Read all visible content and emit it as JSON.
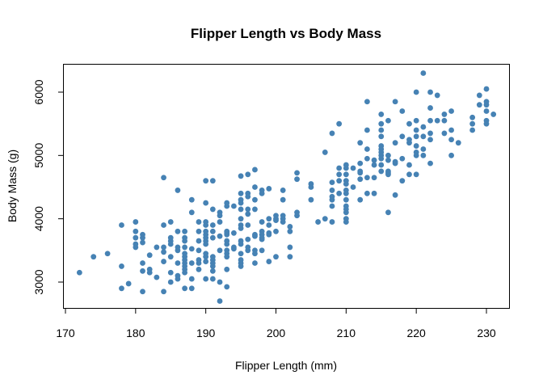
{
  "chart_data": {
    "type": "scatter",
    "title": "Flipper Length vs Body Mass",
    "xlabel": "Flipper Length (mm)",
    "ylabel": "Body Mass (g)",
    "xlim": [
      169.5,
      233
    ],
    "ylim": [
      2600,
      6450
    ],
    "xticks": [
      170,
      180,
      190,
      200,
      210,
      220,
      230
    ],
    "yticks": [
      3000,
      4000,
      5000,
      6000
    ],
    "grid": false,
    "legend": "none",
    "point_color": "#4682B4",
    "columns": [
      {
        "x": 172,
        "y": [
          3150
        ]
      },
      {
        "x": 174,
        "y": [
          3400
        ]
      },
      {
        "x": 176,
        "y": [
          3450
        ]
      },
      {
        "x": 178,
        "y": [
          3900,
          3250,
          2900
        ]
      },
      {
        "x": 179,
        "y": [
          2975
        ]
      },
      {
        "x": 180,
        "y": [
          3950,
          3800,
          3700,
          3600,
          3550
        ]
      },
      {
        "x": 181,
        "y": [
          3750,
          3700,
          3625,
          3300,
          3175,
          2850
        ]
      },
      {
        "x": 182,
        "y": [
          3425,
          3200,
          3150
        ]
      },
      {
        "x": 183,
        "y": [
          3075,
          3550
        ]
      },
      {
        "x": 184,
        "y": [
          4650,
          3900,
          3550,
          3475,
          3325,
          2850
        ]
      },
      {
        "x": 185,
        "y": [
          3950,
          3700,
          3650,
          3600,
          3400,
          3150,
          3000
        ]
      },
      {
        "x": 186,
        "y": [
          4450,
          3800,
          3550,
          3500,
          3300,
          3100,
          3050
        ]
      },
      {
        "x": 187,
        "y": [
          3800,
          3700,
          3650,
          3550,
          3450,
          3400,
          3350,
          3300,
          3250,
          3200,
          3150,
          2900
        ]
      },
      {
        "x": 188,
        "y": [
          4300,
          4100,
          3525,
          3300,
          3050,
          2900
        ]
      },
      {
        "x": 189,
        "y": [
          3950,
          3800,
          3650,
          3500,
          3350,
          3300,
          3200
        ]
      },
      {
        "x": 190,
        "y": [
          4600,
          4250,
          3950,
          3900,
          3800,
          3750,
          3700,
          3650,
          3600,
          3450,
          3400,
          3325,
          3050
        ]
      },
      {
        "x": 191,
        "y": [
          4600,
          4150,
          3900,
          3800,
          3700,
          3400,
          3350,
          3300,
          3250,
          3175,
          3050
        ]
      },
      {
        "x": 192,
        "y": [
          4100,
          4050,
          3950,
          3725,
          3500,
          3000,
          2700
        ]
      },
      {
        "x": 193,
        "y": [
          4250,
          4200,
          3800,
          3775,
          3750,
          3650,
          3600,
          3500,
          3450,
          3400,
          3200,
          2925
        ]
      },
      {
        "x": 194,
        "y": [
          4200,
          3775,
          3550,
          3525
        ]
      },
      {
        "x": 195,
        "y": [
          4675,
          4400,
          4300,
          4250,
          4150,
          4000,
          3900,
          3850,
          3650,
          3600,
          3450,
          3350,
          3300,
          3250
        ]
      },
      {
        "x": 196,
        "y": [
          4700,
          4400,
          4350,
          4150,
          4075,
          3900,
          3675,
          3550,
          3500
        ]
      },
      {
        "x": 197,
        "y": [
          4775,
          4500,
          4300,
          4150,
          3750,
          3725,
          3500,
          3450,
          3300
        ]
      },
      {
        "x": 198,
        "y": [
          4450,
          4400,
          3950,
          3800,
          3750,
          3700,
          3675,
          3500
        ]
      },
      {
        "x": 199,
        "y": [
          4475,
          4000,
          3900,
          3775,
          3750,
          3325
        ]
      },
      {
        "x": 200,
        "y": [
          4050,
          4000,
          3975,
          3800,
          3400
        ]
      },
      {
        "x": 201,
        "y": [
          4450,
          4300,
          4050,
          4000,
          3950
        ]
      },
      {
        "x": 202,
        "y": [
          3875,
          3800,
          3550,
          3400
        ]
      },
      {
        "x": 203,
        "y": [
          4725,
          4625,
          4100,
          4050
        ]
      },
      {
        "x": 205,
        "y": [
          4550,
          4500,
          4300
        ]
      },
      {
        "x": 206,
        "y": [
          3950
        ]
      },
      {
        "x": 207,
        "y": [
          5050,
          4000
        ]
      },
      {
        "x": 208,
        "y": [
          5350,
          4575,
          4450,
          4350,
          4300,
          4200,
          3950
        ]
      },
      {
        "x": 209,
        "y": [
          5500,
          4800,
          4700,
          4600,
          4400
        ]
      },
      {
        "x": 210,
        "y": [
          4850,
          4800,
          4700,
          4600,
          4550,
          4450,
          4400,
          4300,
          4200,
          4150,
          4100,
          4000,
          3950
        ]
      },
      {
        "x": 211,
        "y": [
          4800,
          4500
        ]
      },
      {
        "x": 212,
        "y": [
          5200,
          4875,
          4750,
          4725,
          4625,
          4300
        ]
      },
      {
        "x": 213,
        "y": [
          5850,
          5400,
          5100,
          4950,
          4650,
          4400
        ]
      },
      {
        "x": 214,
        "y": [
          4925,
          4850,
          4650,
          4400
        ]
      },
      {
        "x": 215,
        "y": [
          5650,
          5500,
          5400,
          5300,
          5150,
          5100,
          5050,
          5000,
          4950,
          4850,
          4750
        ]
      },
      {
        "x": 216,
        "y": [
          5550,
          5000,
          4925,
          4750,
          4725,
          4700,
          4100
        ]
      },
      {
        "x": 217,
        "y": [
          5850,
          5200,
          4900,
          4875,
          4375
        ]
      },
      {
        "x": 218,
        "y": [
          5700,
          5300,
          4950,
          4600
        ]
      },
      {
        "x": 219,
        "y": [
          5500,
          5250,
          5200,
          4850,
          4700
        ]
      },
      {
        "x": 220,
        "y": [
          6000,
          5550,
          5400,
          5300,
          5150,
          5050,
          5000,
          4700
        ]
      },
      {
        "x": 221,
        "y": [
          6300,
          5450,
          5300,
          5100,
          5000
        ]
      },
      {
        "x": 222,
        "y": [
          6000,
          5750,
          5550,
          5350,
          5250,
          4875
        ]
      },
      {
        "x": 223,
        "y": [
          5950,
          5550
        ]
      },
      {
        "x": 224,
        "y": [
          5650,
          5550,
          5350
        ]
      },
      {
        "x": 225,
        "y": [
          5700,
          5400,
          5250,
          5000
        ]
      },
      {
        "x": 226,
        "y": [
          5200
        ]
      },
      {
        "x": 228,
        "y": [
          5600,
          5500,
          5400
        ]
      },
      {
        "x": 229,
        "y": [
          5950,
          5800
        ]
      },
      {
        "x": 230,
        "y": [
          6050,
          5850,
          5800,
          5700,
          5550,
          5500
        ]
      },
      {
        "x": 231,
        "y": [
          5650
        ]
      }
    ]
  }
}
